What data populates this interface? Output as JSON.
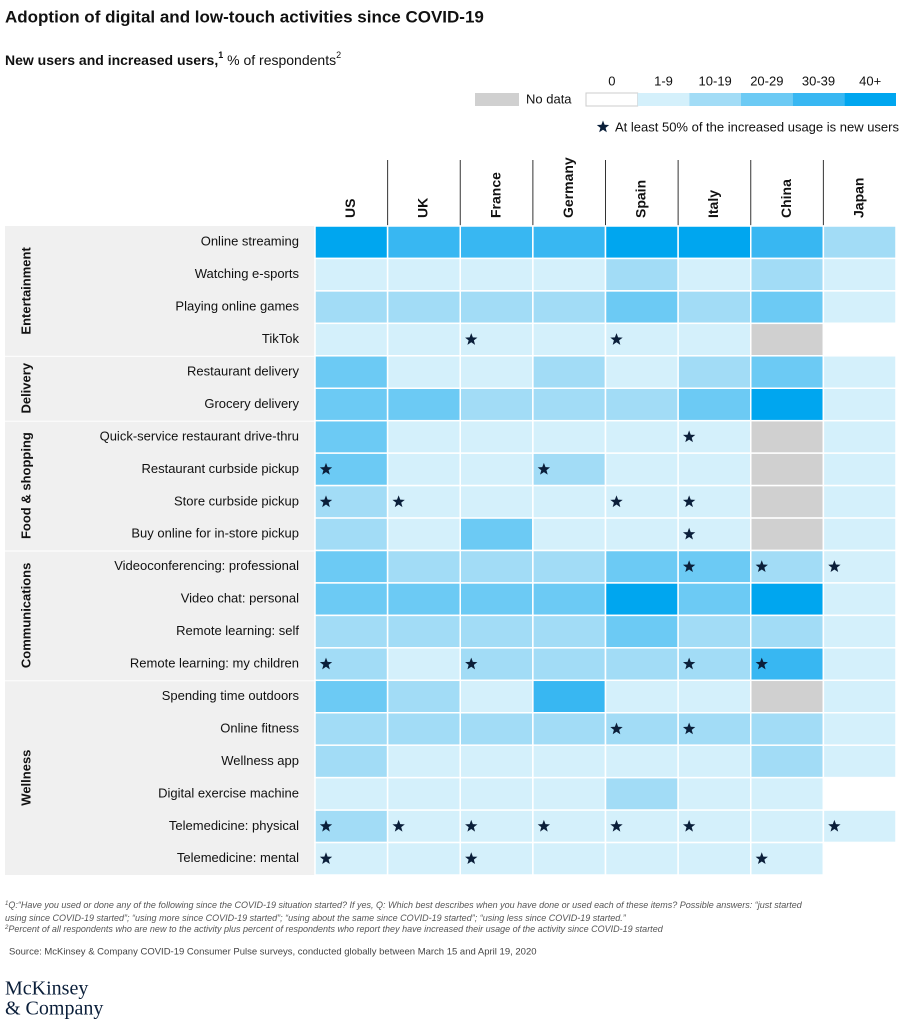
{
  "chart_data": {
    "type": "heatmap",
    "title": "Adoption of digital and low-touch activities since COVID-19",
    "subtitle": {
      "text": "New users and increased users,",
      "note": "1",
      "unit": " % of respondents",
      "unit_note": "2"
    },
    "columns": [
      "US",
      "UK",
      "France",
      "Germany",
      "Spain",
      "Italy",
      "China",
      "Japan"
    ],
    "legend": {
      "no_data": {
        "label": "No data",
        "color": "#d0d0d0"
      },
      "bins": [
        {
          "label": "0",
          "min": 0,
          "color": "#ffffff"
        },
        {
          "label": "1-9",
          "min": 1,
          "color": "#d4f0fb"
        },
        {
          "label": "10-19",
          "min": 10,
          "color": "#a2dcf6"
        },
        {
          "label": "20-29",
          "min": 20,
          "color": "#6ccaf4"
        },
        {
          "label": "30-39",
          "min": 30,
          "color": "#38b7f2"
        },
        {
          "label": "40+",
          "min": 40,
          "color": "#00a6ef"
        }
      ],
      "star": "At least 50% of the increased usage is new users",
      "star_color": "#0b1f3a"
    },
    "groups": [
      {
        "name": "Entertainment",
        "rows": [
          "Online streaming",
          "Watching e-sports",
          "Playing online games",
          "TikTok"
        ],
        "values": [
          [
            45,
            35,
            35,
            35,
            45,
            45,
            35,
            15
          ],
          [
            5,
            5,
            5,
            5,
            15,
            5,
            15,
            5
          ],
          [
            15,
            15,
            15,
            15,
            25,
            15,
            25,
            5
          ],
          [
            5,
            5,
            5,
            5,
            5,
            5,
            null,
            0
          ]
        ],
        "stars": [
          [
            false,
            false,
            false,
            false,
            false,
            false,
            false,
            false
          ],
          [
            false,
            false,
            false,
            false,
            false,
            false,
            false,
            false
          ],
          [
            false,
            false,
            false,
            false,
            false,
            false,
            false,
            false
          ],
          [
            false,
            false,
            true,
            false,
            true,
            false,
            false,
            false
          ]
        ]
      },
      {
        "name": "Delivery",
        "rows": [
          "Restaurant delivery",
          "Grocery delivery"
        ],
        "values": [
          [
            25,
            5,
            5,
            15,
            5,
            15,
            25,
            5
          ],
          [
            25,
            25,
            15,
            15,
            15,
            25,
            45,
            5
          ]
        ],
        "stars": [
          [
            false,
            false,
            false,
            false,
            false,
            false,
            false,
            false
          ],
          [
            false,
            false,
            false,
            false,
            false,
            false,
            false,
            false
          ]
        ]
      },
      {
        "name": "Food & shopping",
        "rows": [
          "Quick-service restaurant drive-thru",
          "Restaurant curbside pickup",
          "Store curbside pickup",
          "Buy online for in-store pickup"
        ],
        "values": [
          [
            25,
            5,
            5,
            5,
            5,
            5,
            null,
            5
          ],
          [
            25,
            5,
            5,
            15,
            5,
            5,
            null,
            5
          ],
          [
            15,
            5,
            5,
            5,
            5,
            5,
            null,
            5
          ],
          [
            15,
            5,
            25,
            5,
            5,
            5,
            null,
            5
          ]
        ],
        "stars": [
          [
            false,
            false,
            false,
            false,
            false,
            true,
            false,
            false
          ],
          [
            true,
            false,
            false,
            true,
            false,
            false,
            false,
            false
          ],
          [
            true,
            true,
            false,
            false,
            true,
            true,
            false,
            false
          ],
          [
            false,
            false,
            false,
            false,
            false,
            true,
            false,
            false
          ]
        ]
      },
      {
        "name": "Communications",
        "rows": [
          "Videoconferencing: professional",
          "Video chat: personal",
          "Remote learning: self",
          "Remote learning: my children"
        ],
        "values": [
          [
            25,
            15,
            15,
            15,
            25,
            25,
            15,
            5
          ],
          [
            25,
            25,
            25,
            25,
            45,
            25,
            45,
            5
          ],
          [
            15,
            15,
            15,
            15,
            25,
            15,
            15,
            5
          ],
          [
            15,
            5,
            15,
            15,
            15,
            15,
            35,
            5
          ]
        ],
        "stars": [
          [
            false,
            false,
            false,
            false,
            false,
            true,
            true,
            true
          ],
          [
            false,
            false,
            false,
            false,
            false,
            false,
            false,
            false
          ],
          [
            false,
            false,
            false,
            false,
            false,
            false,
            false,
            false
          ],
          [
            true,
            false,
            true,
            false,
            false,
            true,
            true,
            false
          ]
        ]
      },
      {
        "name": "Wellness",
        "rows": [
          "Spending time outdoors",
          "Online fitness",
          "Wellness app",
          "Digital exercise machine",
          "Telemedicine: physical",
          "Telemedicine: mental"
        ],
        "values": [
          [
            25,
            15,
            5,
            35,
            5,
            5,
            null,
            5
          ],
          [
            15,
            15,
            15,
            15,
            15,
            15,
            15,
            5
          ],
          [
            15,
            5,
            5,
            5,
            5,
            5,
            15,
            5
          ],
          [
            5,
            5,
            5,
            5,
            15,
            5,
            5,
            0
          ],
          [
            15,
            5,
            5,
            5,
            5,
            5,
            5,
            5
          ],
          [
            5,
            5,
            5,
            5,
            5,
            5,
            5,
            0
          ]
        ],
        "stars": [
          [
            false,
            false,
            false,
            false,
            false,
            false,
            false,
            false
          ],
          [
            false,
            false,
            false,
            false,
            true,
            true,
            false,
            false
          ],
          [
            false,
            false,
            false,
            false,
            false,
            false,
            false,
            false
          ],
          [
            false,
            false,
            false,
            false,
            false,
            false,
            false,
            false
          ],
          [
            true,
            true,
            true,
            true,
            true,
            true,
            false,
            true
          ],
          [
            true,
            false,
            true,
            false,
            false,
            false,
            true,
            false
          ]
        ]
      }
    ],
    "footnotes": [
      {
        "mark": "1",
        "lines": [
          "Q:“Have you used or done any of the following since the COVID-19 situation started? If yes, Q: Which best describes when you have done or used each of these items? Possible answers: “just started",
          "using since COVID-19 started”; “using more since COVID-19 started”; “using about the same since COVID-19 started”; “using less since COVID-19 started.”"
        ]
      },
      {
        "mark": "2",
        "lines": [
          "Percent of all respondents who are new to the activity plus percent of respondents who report they have increased their usage of the activity since COVID-19 started"
        ]
      }
    ],
    "source": "Source: McKinsey & Company COVID-19 Consumer Pulse surveys, conducted globally between March 15 and April 19, 2020",
    "logo": [
      "McKinsey",
      "& Company"
    ]
  }
}
